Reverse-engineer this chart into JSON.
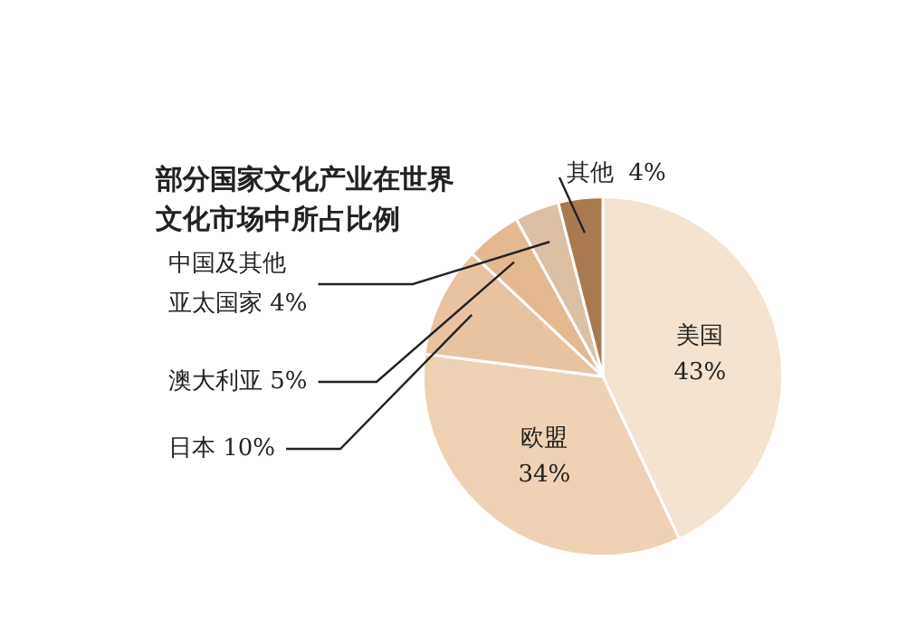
{
  "chart_data": {
    "type": "pie",
    "title": "部分国家文化产业在世界文化市场中所占比例",
    "categories": [
      "美国",
      "欧盟",
      "日本",
      "澳大利亚",
      "中国及其他亚太国家",
      "其他"
    ],
    "values": [
      43,
      34,
      10,
      5,
      4,
      4
    ],
    "value_labels": [
      "43%",
      "34%",
      "10%",
      "5%",
      "4%",
      "4%"
    ],
    "colors": [
      "#f3e3d0",
      "#efd1b3",
      "#e9c29f",
      "#e4b98f",
      "#dcc0a3",
      "#a97a4f"
    ],
    "legend": false
  }
}
